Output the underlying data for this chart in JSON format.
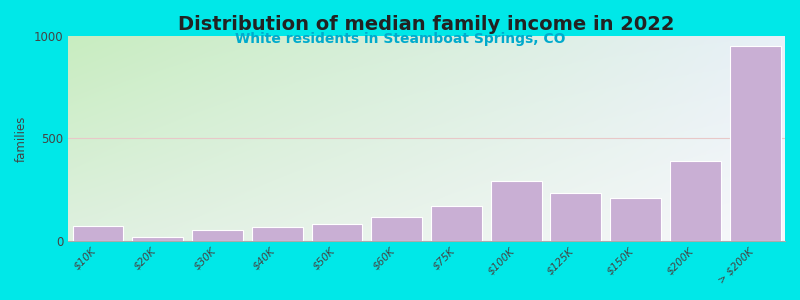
{
  "title": "Distribution of median family income in 2022",
  "subtitle": "White residents in Steamboat Springs, CO",
  "categories": [
    "$10K",
    "$20K",
    "$30K",
    "$40K",
    "$50K",
    "$60K",
    "$75K",
    "$100K",
    "$125K",
    "$150K",
    "$200K",
    "> $200K"
  ],
  "values": [
    75,
    20,
    55,
    70,
    85,
    115,
    170,
    290,
    235,
    210,
    390,
    950
  ],
  "bar_color": "#c9afd4",
  "bar_edge_color": "#ffffff",
  "background_outer": "#00e8e8",
  "bg_topleft": "#c8edc0",
  "bg_topright": "#e8f0f8",
  "bg_bottomleft": "#dff0e0",
  "bg_bottomright": "#f8f8fc",
  "title_fontsize": 14,
  "subtitle_fontsize": 10,
  "ylabel": "families",
  "ylim": [
    0,
    1000
  ],
  "yticks": [
    0,
    500,
    1000
  ],
  "grid_color": "#e8c8c8",
  "title_color": "#222222",
  "subtitle_color": "#00aacc"
}
